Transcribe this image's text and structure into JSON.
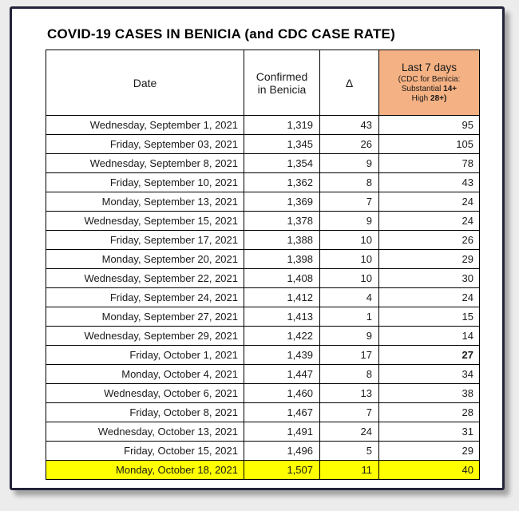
{
  "title": "COVID-19 CASES IN BENICIA (and CDC CASE RATE)",
  "header": {
    "date": "Date",
    "confirmed_line1": "Confirmed",
    "confirmed_line2": "in Benicia",
    "delta": "Δ",
    "last7_title": "Last 7 days",
    "last7_sub1": "(CDC for Benicia:",
    "last7_sub2_label": "Substantial ",
    "last7_sub2_bold": "14+",
    "last7_sub3_label": "High ",
    "last7_sub3_bold": "28+)"
  },
  "colors": {
    "last7_header_bg": "#F4B183",
    "rate_text": "#FF0000",
    "highlight_row_bg": "#FFFF00",
    "frame_border": "#23233A"
  },
  "chart_data": {
    "type": "table",
    "title": "COVID-19 CASES IN BENICIA (and CDC CASE RATE)",
    "columns": [
      "Date",
      "Confirmed in Benicia",
      "Δ",
      "Last 7 days (CDC for Benicia: Substantial 14+ High 28+)"
    ],
    "rows": [
      {
        "date": "Wednesday, September 1, 2021",
        "confirmed": "1,319",
        "delta": "43",
        "last7": "95"
      },
      {
        "date": "Friday, September 03, 2021",
        "confirmed": "1,345",
        "delta": "26",
        "last7": "105"
      },
      {
        "date": "Wednesday, September 8, 2021",
        "confirmed": "1,354",
        "delta": "9",
        "last7": "78"
      },
      {
        "date": "Friday, September 10, 2021",
        "confirmed": "1,362",
        "delta": "8",
        "last7": "43"
      },
      {
        "date": "Monday, September 13, 2021",
        "confirmed": "1,369",
        "delta": "7",
        "last7": "24"
      },
      {
        "date": "Wednesday, September 15, 2021",
        "confirmed": "1,378",
        "delta": "9",
        "last7": "24"
      },
      {
        "date": "Friday, September 17, 2021",
        "confirmed": "1,388",
        "delta": "10",
        "last7": "26"
      },
      {
        "date": "Monday, September 20, 2021",
        "confirmed": "1,398",
        "delta": "10",
        "last7": "29"
      },
      {
        "date": "Wednesday, September 22, 2021",
        "confirmed": "1,408",
        "delta": "10",
        "last7": "30"
      },
      {
        "date": "Friday, September 24, 2021",
        "confirmed": "1,412",
        "delta": "4",
        "last7": "24"
      },
      {
        "date": "Monday, September 27, 2021",
        "confirmed": "1,413",
        "delta": "1",
        "last7": "15"
      },
      {
        "date": "Wednesday, September 29, 2021",
        "confirmed": "1,422",
        "delta": "9",
        "last7": "14"
      },
      {
        "date": "Friday, October 1, 2021",
        "confirmed": "1,439",
        "delta": "17",
        "last7": "27",
        "bold": true
      },
      {
        "date": "Monday, October 4, 2021",
        "confirmed": "1,447",
        "delta": "8",
        "last7": "34"
      },
      {
        "date": "Wednesday, October 6, 2021",
        "confirmed": "1,460",
        "delta": "13",
        "last7": "38"
      },
      {
        "date": "Friday, October 8, 2021",
        "confirmed": "1,467",
        "delta": "7",
        "last7": "28"
      },
      {
        "date": "Wednesday, October 13, 2021",
        "confirmed": "1,491",
        "delta": "24",
        "last7": "31"
      },
      {
        "date": "Friday, October 15, 2021",
        "confirmed": "1,496",
        "delta": "5",
        "last7": "29"
      },
      {
        "date": "Monday, October 18, 2021",
        "confirmed": "1,507",
        "delta": "11",
        "last7": "40",
        "highlight": true
      }
    ]
  }
}
